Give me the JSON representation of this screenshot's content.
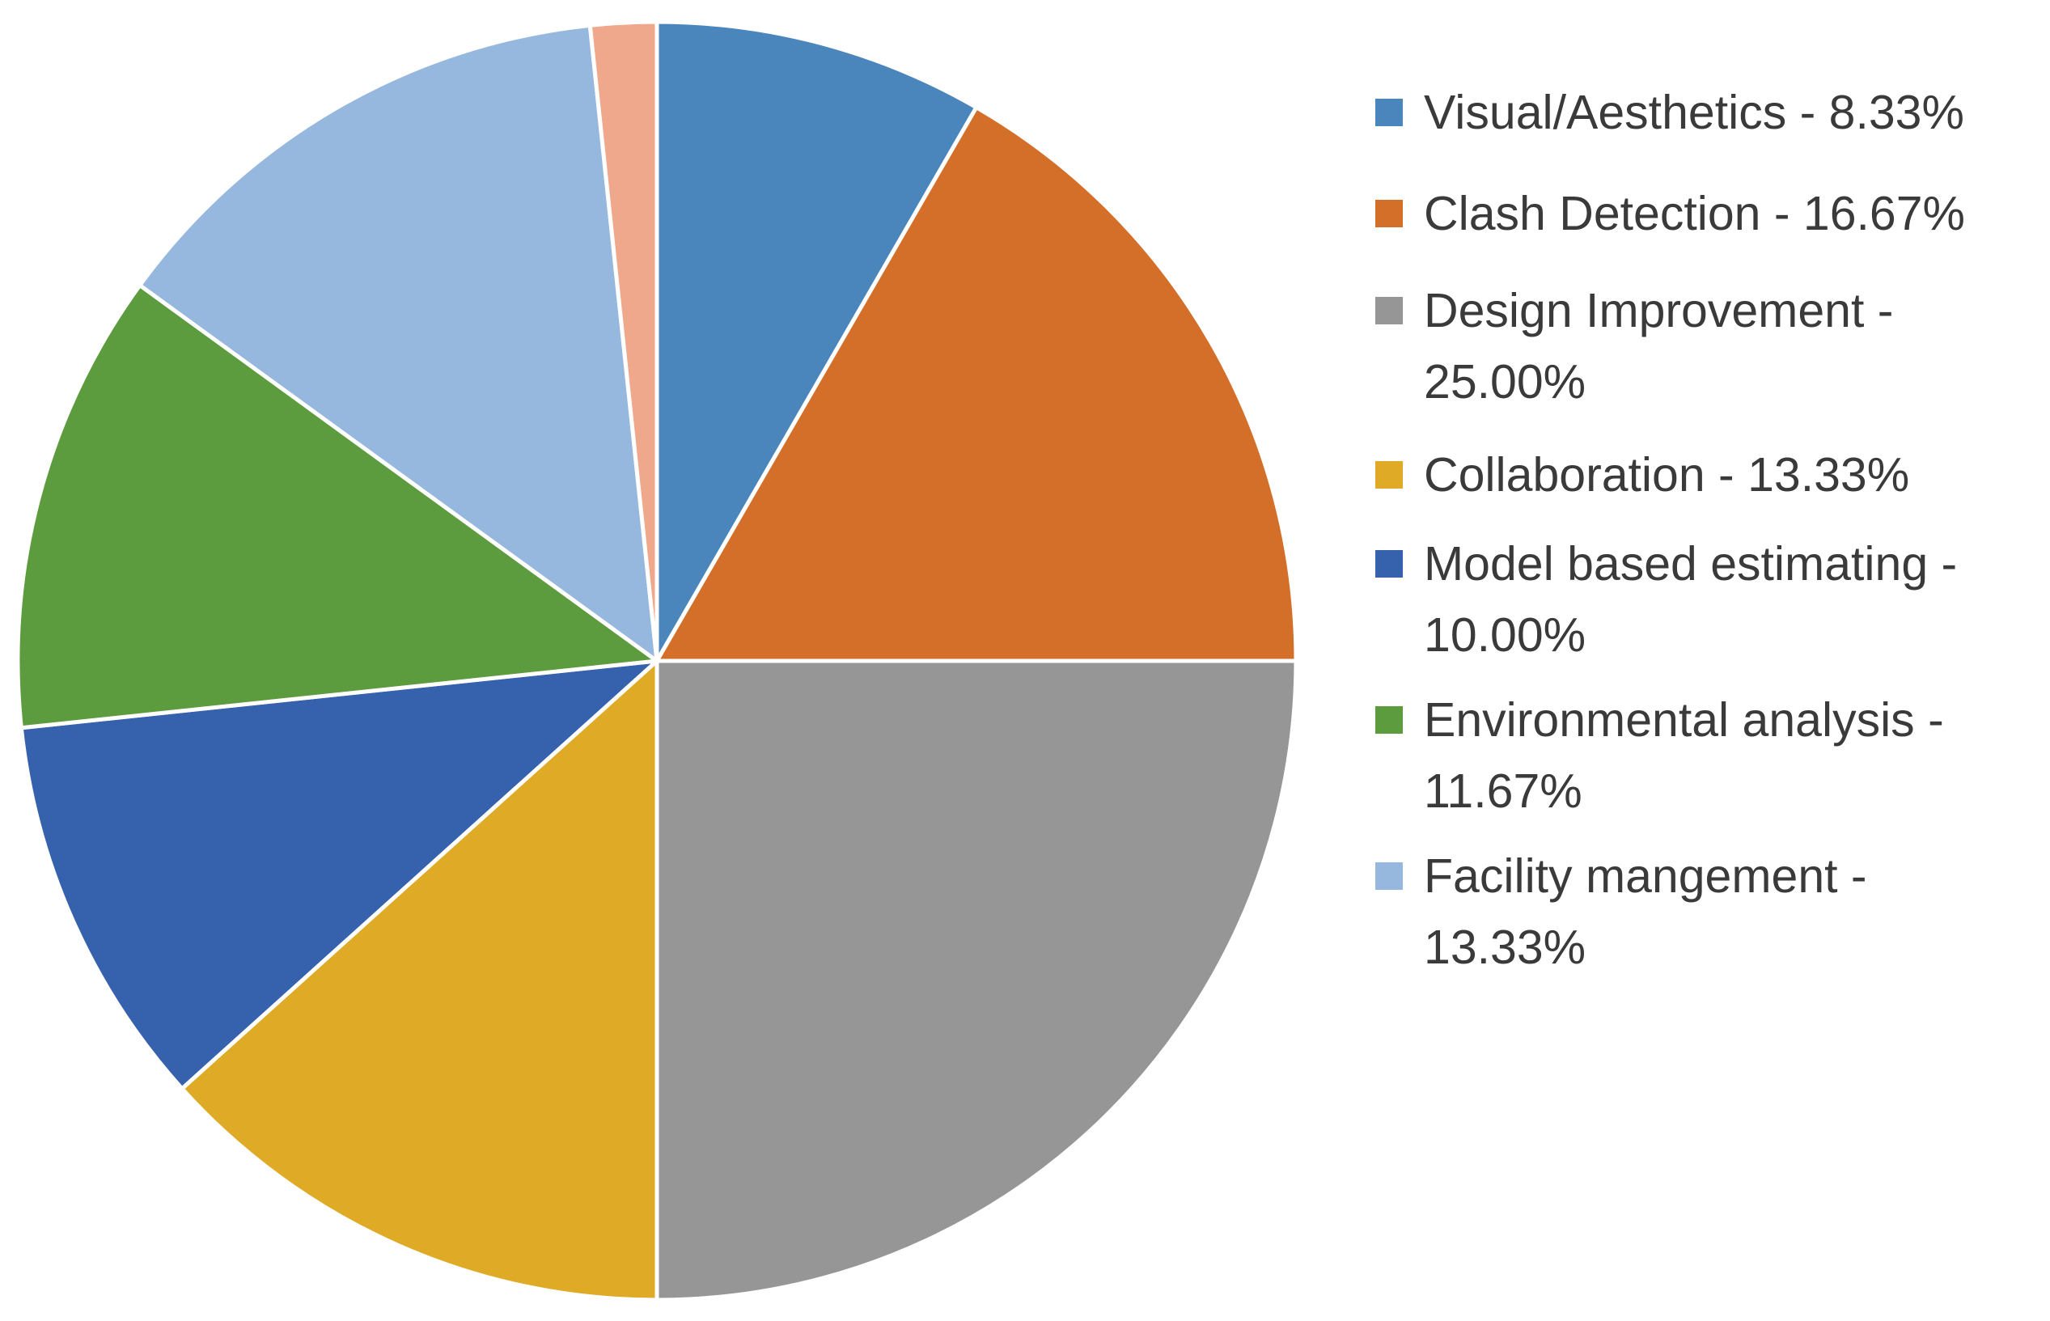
{
  "chart_data": {
    "type": "pie",
    "title": "",
    "slices": [
      {
        "label": "Visual/Aesthetics - 8.33%",
        "category": "Visual/Aesthetics",
        "value": 8.33,
        "color": "#4a86bc"
      },
      {
        "label": "Clash Detection - 16.67%",
        "category": "Clash Detection",
        "value": 16.67,
        "color": "#d36f28"
      },
      {
        "label": "Design Improvement - 25.00%",
        "category": "Design Improvement",
        "value": 25.0,
        "color": "#969696"
      },
      {
        "label": "Collaboration - 13.33%",
        "category": "Collaboration",
        "value": 13.33,
        "color": "#dfaa25"
      },
      {
        "label": "Model based estimating - 10.00%",
        "category": "Model based estimating",
        "value": 10.0,
        "color": "#3662ad"
      },
      {
        "label": "Environmental analysis - 11.67%",
        "category": "Environmental analysis",
        "value": 11.67,
        "color": "#5d9b3f"
      },
      {
        "label": "Facility mangement - 13.33%",
        "category": "Facility mangement",
        "value": 13.33,
        "color": "#96b8df"
      },
      {
        "label": "",
        "category": "",
        "value": 1.67,
        "color": "#f0a88c"
      }
    ],
    "legend_position": "right",
    "grid": false
  }
}
